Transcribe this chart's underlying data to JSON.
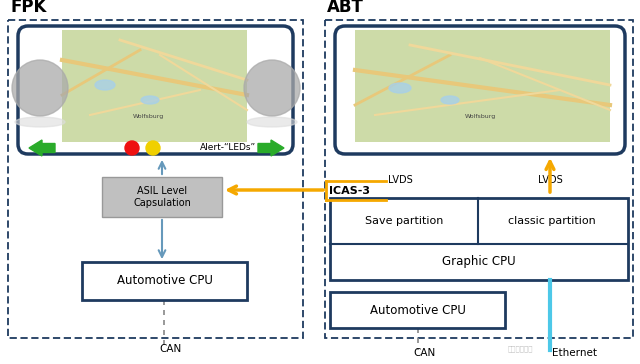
{
  "bg_color": "#ffffff",
  "title_fpk": "FPK",
  "title_abt": "ABT",
  "label_icas3": "ICAS-3",
  "label_lvds1": "LVDS",
  "label_lvds2": "LVDS",
  "label_asil": "ASIL Level\nCapsulation",
  "label_auto_cpu_fpk": "Automotive CPU",
  "label_auto_cpu_abt": "Automotive CPU",
  "label_save_part": "Save partition",
  "label_classic_part": "classic partition",
  "label_graphic_cpu": "Graphic CPU",
  "label_alert": "Alert-“LEDs”",
  "label_can_fpk": "CAN",
  "label_can_abt": "CAN",
  "label_ethernet": "Ethernet",
  "dark_blue": "#1e3a5f",
  "light_blue": "#4dc8e8",
  "orange": "#f5a800",
  "green_arrow": "#2aab2a",
  "gray_asil": "#b8b8b8",
  "circle_color": "#aaaaaa",
  "map_green": "#cddba8",
  "watermark": "汽车电子设计"
}
